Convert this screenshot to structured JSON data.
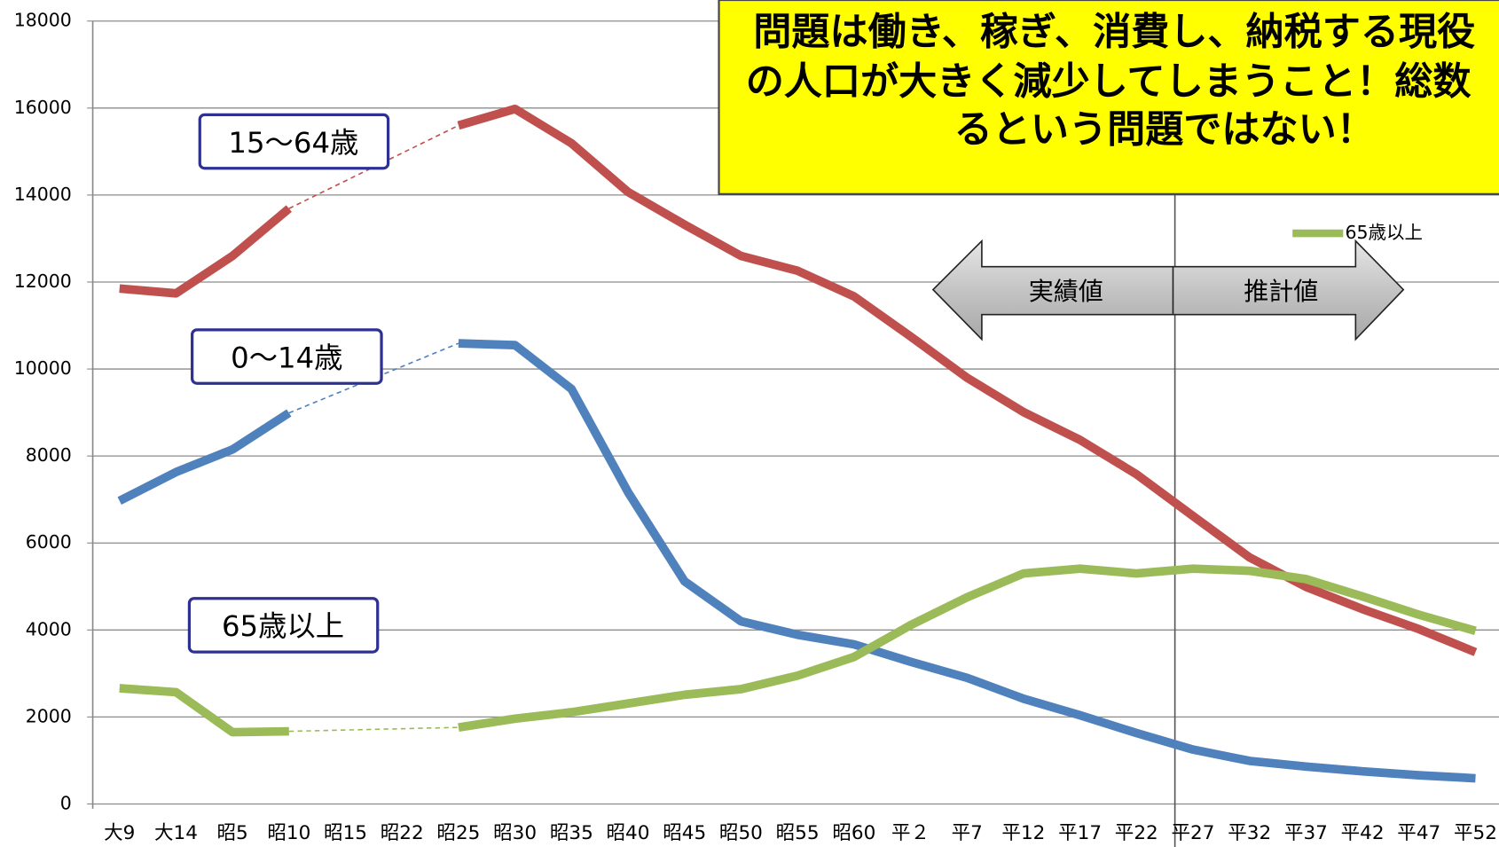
{
  "chart_data": {
    "type": "line",
    "categories": [
      "大9",
      "大14",
      "昭5",
      "昭10",
      "昭15",
      "昭22",
      "昭25",
      "昭30",
      "昭35",
      "昭40",
      "昭45",
      "昭50",
      "昭55",
      "昭60",
      "平２",
      "平7",
      "平12",
      "平17",
      "平22",
      "平27",
      "平32",
      "平37",
      "平42",
      "平47",
      "平52"
    ],
    "series": [
      {
        "name": "15～64歳",
        "color": "#c0504d",
        "values": [
          11850,
          11740,
          12600,
          13690,
          null,
          null,
          15600,
          15980,
          15190,
          14070,
          13320,
          12600,
          12260,
          11670,
          10750,
          9800,
          9010,
          8370,
          7580,
          6620,
          5670,
          4990,
          4480,
          4020,
          3490
        ]
      },
      {
        "name": "0～14歳",
        "color": "#4f81bd",
        "values": [
          6970,
          7630,
          8150,
          8990,
          null,
          null,
          10590,
          10550,
          9540,
          7170,
          5120,
          4200,
          3890,
          3670,
          3270,
          2900,
          2420,
          2040,
          1630,
          1250,
          990,
          860,
          750,
          660,
          590
        ]
      },
      {
        "name": "65歳以上",
        "color": "#9bbb59",
        "values": [
          2660,
          2570,
          1650,
          1670,
          null,
          null,
          1760,
          1960,
          2110,
          2310,
          2510,
          2640,
          2950,
          3380,
          4110,
          4750,
          5300,
          5410,
          5300,
          5410,
          5360,
          5170,
          4770,
          4350,
          3980
        ]
      }
    ],
    "ylim": [
      0,
      18000
    ],
    "yticks": [
      0,
      2000,
      4000,
      6000,
      8000,
      10000,
      12000,
      14000,
      16000,
      18000
    ],
    "grid": true,
    "legend": "upper right",
    "annotation": [
      "問題は働き、稼ぎ、消費し、納税する現役",
      "の人口が大きく減少してしまうこと！総数",
      "るという問題ではない！"
    ],
    "arrow_labels": [
      "実績値",
      "推計値"
    ]
  }
}
